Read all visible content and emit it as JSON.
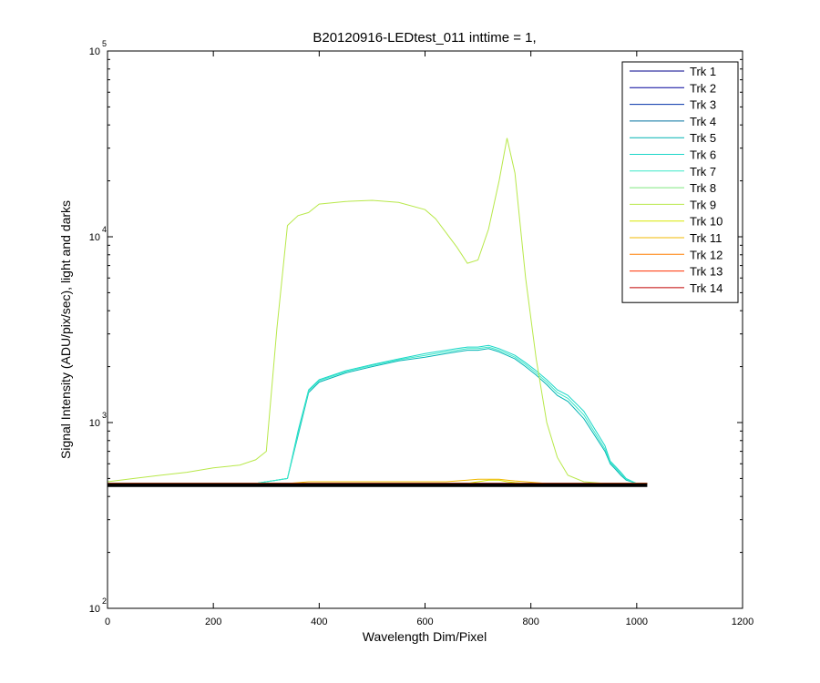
{
  "chart_data": {
    "type": "line",
    "title": "B20120916-LEDtest_011 inttime = 1,",
    "xlabel": "Wavelength Dim/Pixel",
    "ylabel": "Signal Intensity (ADU/pix/sec), light and darks",
    "xlim": [
      0,
      1200
    ],
    "ylim": [
      100,
      100000
    ],
    "yscale": "log",
    "x_ticks": [
      "0",
      "200",
      "400",
      "600",
      "800",
      "1000",
      "1200"
    ],
    "y_ticks": [
      {
        "base": "10",
        "exp": "2",
        "value": 100
      },
      {
        "base": "10",
        "exp": "3",
        "value": 1000
      },
      {
        "base": "10",
        "exp": "4",
        "value": 10000
      },
      {
        "base": "10",
        "exp": "5",
        "value": 100000
      }
    ],
    "grid": false,
    "legend_position": "top-right",
    "x": [
      0,
      50,
      100,
      150,
      200,
      250,
      280,
      300,
      320,
      340,
      360,
      380,
      400,
      450,
      500,
      550,
      600,
      620,
      640,
      660,
      680,
      700,
      720,
      740,
      755,
      770,
      790,
      810,
      830,
      850,
      870,
      900,
      940,
      950,
      960,
      970,
      980,
      1000,
      1020
    ],
    "series": [
      {
        "name": "Trk 1",
        "color": "#00008b",
        "values": [
          470,
          470,
          470,
          470,
          470,
          470,
          470,
          470,
          470,
          470,
          470,
          470,
          470,
          470,
          470,
          470,
          470,
          470,
          470,
          470,
          470,
          470,
          470,
          470,
          470,
          470,
          470,
          470,
          470,
          470,
          470,
          470,
          470,
          470,
          470,
          470,
          470,
          470,
          470
        ]
      },
      {
        "name": "Trk 2",
        "color": "#00009a",
        "values": [
          470,
          470,
          470,
          470,
          470,
          470,
          470,
          470,
          470,
          470,
          470,
          470,
          470,
          470,
          470,
          470,
          470,
          470,
          470,
          470,
          470,
          470,
          470,
          470,
          470,
          470,
          470,
          470,
          470,
          470,
          470,
          470,
          470,
          470,
          470,
          470,
          470,
          470,
          470
        ]
      },
      {
        "name": "Trk 3",
        "color": "#0030a8",
        "values": [
          470,
          470,
          470,
          470,
          470,
          470,
          470,
          470,
          470,
          470,
          470,
          470,
          470,
          470,
          470,
          470,
          470,
          470,
          470,
          470,
          470,
          470,
          470,
          470,
          470,
          470,
          470,
          470,
          470,
          470,
          470,
          470,
          470,
          470,
          470,
          470,
          470,
          470,
          470
        ]
      },
      {
        "name": "Trk 4",
        "color": "#00709f",
        "values": [
          470,
          470,
          470,
          470,
          470,
          470,
          470,
          470,
          470,
          470,
          470,
          470,
          470,
          470,
          470,
          470,
          470,
          470,
          470,
          470,
          470,
          470,
          470,
          470,
          470,
          470,
          470,
          470,
          470,
          470,
          470,
          470,
          470,
          470,
          470,
          470,
          470,
          470,
          470
        ]
      },
      {
        "name": "Trk 5",
        "color": "#00b4b4",
        "values": [
          470,
          470,
          470,
          470,
          470,
          470,
          470,
          480,
          490,
          500,
          850,
          1450,
          1650,
          1850,
          2000,
          2150,
          2250,
          2300,
          2350,
          2400,
          2450,
          2450,
          2500,
          2400,
          2300,
          2200,
          2000,
          1800,
          1600,
          1400,
          1300,
          1050,
          700,
          600,
          560,
          520,
          490,
          470,
          470
        ]
      },
      {
        "name": "Trk 6",
        "color": "#1ad6c8",
        "values": [
          470,
          470,
          470,
          470,
          470,
          470,
          470,
          480,
          490,
          500,
          900,
          1500,
          1700,
          1900,
          2050,
          2200,
          2350,
          2400,
          2450,
          2500,
          2550,
          2550,
          2600,
          2500,
          2400,
          2300,
          2100,
          1900,
          1700,
          1500,
          1400,
          1150,
          750,
          620,
          580,
          540,
          500,
          470,
          470
        ]
      },
      {
        "name": "Trk 7",
        "color": "#3ae8c8",
        "values": [
          470,
          470,
          470,
          470,
          470,
          470,
          470,
          480,
          490,
          500,
          870,
          1480,
          1680,
          1880,
          2030,
          2180,
          2300,
          2350,
          2400,
          2450,
          2500,
          2500,
          2550,
          2450,
          2350,
          2250,
          2050,
          1850,
          1650,
          1450,
          1350,
          1100,
          720,
          610,
          570,
          530,
          495,
          470,
          470
        ]
      },
      {
        "name": "Trk 8",
        "color": "#7fe87f",
        "values": [
          470,
          470,
          470,
          470,
          470,
          470,
          470,
          470,
          470,
          470,
          470,
          470,
          470,
          470,
          470,
          470,
          470,
          470,
          470,
          470,
          470,
          470,
          470,
          470,
          470,
          470,
          470,
          470,
          470,
          470,
          470,
          470,
          470,
          470,
          470,
          470,
          470,
          470,
          470
        ]
      },
      {
        "name": "Trk 9",
        "color": "#b8e84a",
        "values": [
          480,
          500,
          520,
          540,
          570,
          590,
          630,
          700,
          3200,
          11500,
          13000,
          13500,
          15000,
          15500,
          15700,
          15300,
          14000,
          12500,
          10500,
          8800,
          7200,
          7500,
          11000,
          20000,
          34000,
          22000,
          6000,
          2200,
          1000,
          650,
          520,
          480,
          470,
          470,
          470,
          470,
          470,
          470,
          470
        ]
      },
      {
        "name": "Trk 10",
        "color": "#d8e800",
        "values": [
          470,
          470,
          470,
          470,
          470,
          470,
          470,
          470,
          470,
          470,
          470,
          470,
          470,
          470,
          470,
          470,
          470,
          470,
          470,
          470,
          470,
          480,
          490,
          490,
          480,
          475,
          470,
          470,
          470,
          470,
          470,
          470,
          470,
          470,
          470,
          470,
          470,
          470,
          470
        ]
      },
      {
        "name": "Trk 11",
        "color": "#f0b800",
        "values": [
          470,
          470,
          470,
          470,
          470,
          470,
          470,
          470,
          470,
          470,
          475,
          480,
          480,
          480,
          480,
          480,
          480,
          480,
          480,
          485,
          490,
          495,
          495,
          495,
          490,
          485,
          480,
          475,
          470,
          470,
          470,
          470,
          470,
          470,
          470,
          470,
          470,
          470,
          470
        ]
      },
      {
        "name": "Trk 12",
        "color": "#ff7f00",
        "values": [
          470,
          470,
          470,
          470,
          470,
          470,
          470,
          470,
          470,
          470,
          470,
          470,
          470,
          470,
          470,
          470,
          470,
          470,
          470,
          470,
          470,
          470,
          470,
          470,
          470,
          470,
          470,
          470,
          470,
          470,
          470,
          470,
          470,
          470,
          470,
          470,
          470,
          470,
          470
        ]
      },
      {
        "name": "Trk 13",
        "color": "#ff3000",
        "values": [
          470,
          470,
          470,
          470,
          470,
          470,
          470,
          470,
          470,
          470,
          470,
          470,
          470,
          470,
          470,
          470,
          470,
          470,
          470,
          470,
          470,
          470,
          470,
          470,
          470,
          470,
          470,
          470,
          470,
          470,
          470,
          470,
          470,
          470,
          470,
          470,
          470,
          470,
          470
        ]
      },
      {
        "name": "Trk 14",
        "color": "#c00000",
        "values": [
          470,
          470,
          470,
          470,
          470,
          470,
          470,
          470,
          470,
          470,
          470,
          470,
          470,
          470,
          470,
          470,
          470,
          470,
          470,
          470,
          470,
          470,
          470,
          470,
          470,
          470,
          470,
          470,
          470,
          470,
          470,
          470,
          470,
          470,
          470,
          470,
          470,
          470,
          470
        ]
      }
    ],
    "dark_level": {
      "color": "#000000",
      "x": [
        0,
        1020
      ],
      "values": [
        460,
        460
      ]
    }
  }
}
